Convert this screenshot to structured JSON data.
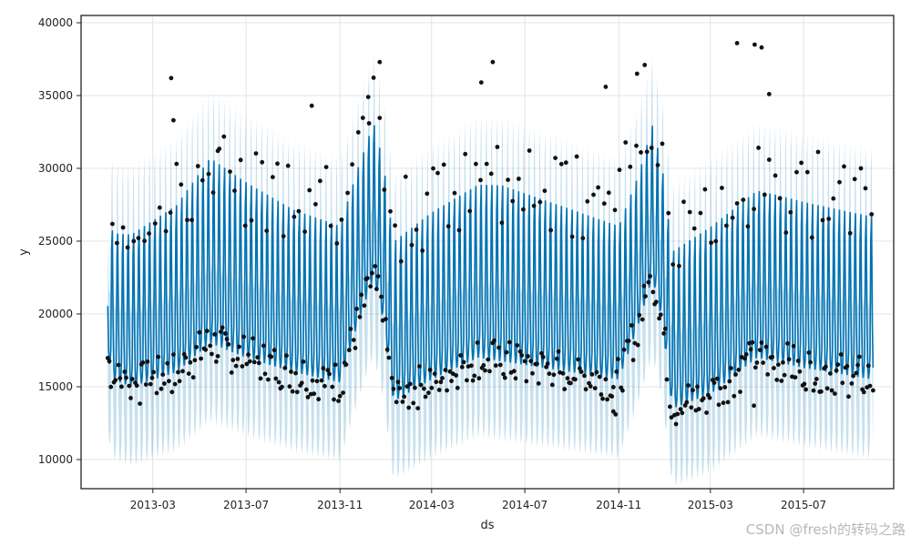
{
  "chart_data": {
    "type": "line",
    "title": "",
    "xlabel": "ds",
    "ylabel": "y",
    "ylim": [
      8000,
      40500
    ],
    "y_ticks": [
      10000,
      15000,
      20000,
      25000,
      30000,
      35000,
      40000
    ],
    "x_ticks": [
      "2013-03",
      "2013-07",
      "2013-11",
      "2014-03",
      "2014-07",
      "2014-11",
      "2015-03",
      "2015-07"
    ],
    "x_range": [
      "2012-11-27",
      "2015-10-27"
    ],
    "grid": true,
    "series": [
      {
        "kind": "forecast-line",
        "color": "#0072B2",
        "x_start": "2013-01-01",
        "x_end": "2015-09-30",
        "weekly_pattern": [
          1.0,
          0.8,
          0.75,
          0.78,
          0.85,
          1.35,
          1.45
        ],
        "baseline_key_dates": [
          "2013-01-01",
          "2013-01-08",
          "2013-02-01",
          "2013-04-01",
          "2013-05-15",
          "2013-07-01",
          "2013-09-01",
          "2013-11-01",
          "2013-11-25",
          "2013-12-15",
          "2013-12-28",
          "2014-01-10",
          "2014-03-01",
          "2014-05-01",
          "2014-07-01",
          "2014-09-01",
          "2014-11-01",
          "2014-11-25",
          "2014-12-15",
          "2014-12-28",
          "2015-01-10",
          "2015-03-01",
          "2015-05-01",
          "2015-07-01",
          "2015-09-30"
        ],
        "baseline_key_values": [
          19500,
          18000,
          17500,
          18500,
          20500,
          19500,
          18500,
          17800,
          22000,
          25000,
          22000,
          16500,
          18000,
          19500,
          19000,
          18500,
          18000,
          21500,
          25000,
          22000,
          16000,
          17000,
          19500,
          18800,
          18000
        ],
        "amplitude_key_dates": [
          "2013-01-01",
          "2013-04-01",
          "2013-05-15",
          "2013-09-01",
          "2013-12-01",
          "2014-03-01",
          "2014-06-01",
          "2014-09-01",
          "2014-12-01",
          "2015-03-01",
          "2015-06-01",
          "2015-09-30"
        ],
        "amplitude_key_values": [
          16000,
          18500,
          20500,
          18000,
          17000,
          18500,
          19500,
          18000,
          16500,
          18500,
          18500,
          18000
        ]
      },
      {
        "kind": "uncertainty-band",
        "color": "#0072B2",
        "lower_offset": -5500,
        "upper_offset": 4800
      },
      {
        "kind": "scatter",
        "color": "#111111",
        "x_start": "2013-01-01",
        "x_end": "2015-09-30",
        "weekday_mean_offset": 2500,
        "weekday_spread": 1500,
        "weekend_mean_offset": 9500,
        "weekend_spread": 3000,
        "outliers": [
          {
            "x": "2013-03-25",
            "y": 36200
          },
          {
            "x": "2013-03-28",
            "y": 33300
          },
          {
            "x": "2013-05-25",
            "y": 31200
          },
          {
            "x": "2013-09-25",
            "y": 34300
          },
          {
            "x": "2013-12-08",
            "y": 34900
          },
          {
            "x": "2013-12-23",
            "y": 37300
          },
          {
            "x": "2014-05-05",
            "y": 35900
          },
          {
            "x": "2014-05-20",
            "y": 37300
          },
          {
            "x": "2014-10-15",
            "y": 35600
          },
          {
            "x": "2014-11-25",
            "y": 36500
          },
          {
            "x": "2014-12-05",
            "y": 37100
          },
          {
            "x": "2015-04-05",
            "y": 38600
          },
          {
            "x": "2015-04-28",
            "y": 38500
          },
          {
            "x": "2015-05-07",
            "y": 38300
          },
          {
            "x": "2015-05-17",
            "y": 35100
          },
          {
            "x": "2014-10-25",
            "y": 13300
          },
          {
            "x": "2014-10-28",
            "y": 13100
          },
          {
            "x": "2015-04-27",
            "y": 13700
          }
        ]
      }
    ]
  },
  "watermark": "CSDN @fresh的转码之路"
}
